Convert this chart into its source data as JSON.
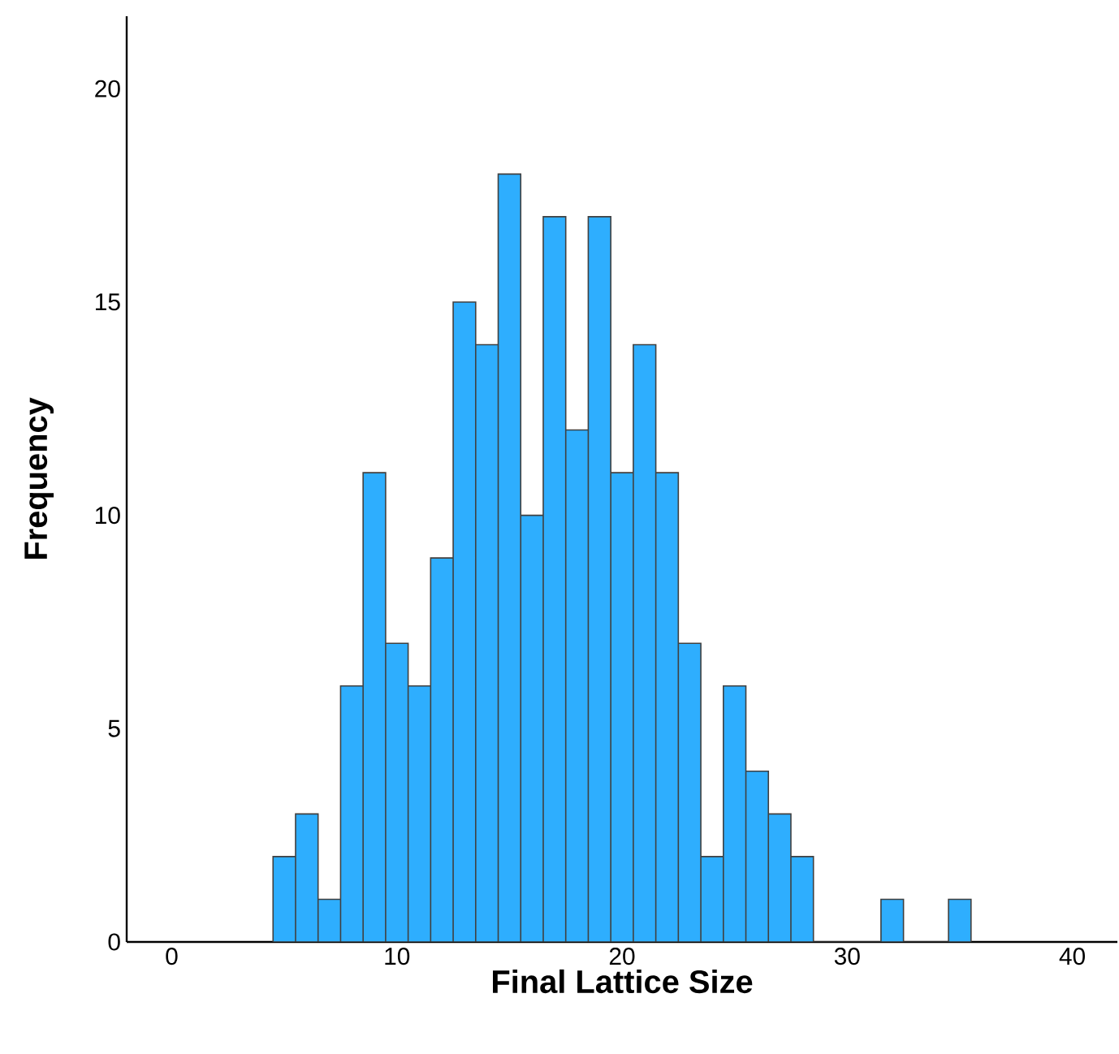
{
  "chart_data": {
    "type": "histogram",
    "xlabel": "Final Lattice Size",
    "ylabel": "Frequency",
    "bins": [
      4.5,
      5.5,
      6.5,
      7.5,
      8.5,
      9.5,
      10.5,
      11.5,
      12.5,
      13.5,
      14.5,
      15.5,
      16.5,
      17.5,
      18.5,
      19.5,
      20.5,
      21.5,
      22.5,
      23.5,
      24.5,
      25.5,
      26.5,
      27.5,
      28.5,
      29.5,
      30.5,
      31.5,
      32.5,
      33.5,
      34.5,
      35.5
    ],
    "values": [
      2,
      3,
      1,
      6,
      11,
      7,
      6,
      9,
      15,
      14,
      18,
      10,
      17,
      12,
      17,
      11,
      14,
      11,
      7,
      2,
      6,
      4,
      3,
      2,
      0,
      0,
      0,
      1,
      0,
      0,
      1
    ],
    "color": "#2eaefe",
    "xlim": [
      -2,
      42
    ],
    "ylim": [
      0,
      21.7
    ],
    "xticks": [
      0,
      10,
      20,
      30,
      40
    ],
    "yticks": [
      0,
      5,
      10,
      15,
      20
    ]
  }
}
